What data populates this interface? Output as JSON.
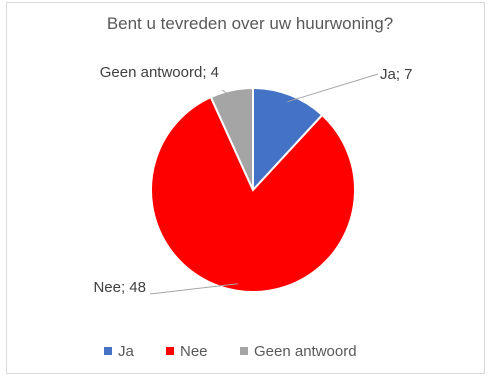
{
  "chart_data": {
    "type": "pie",
    "title": "Bent u tevreden over uw huurwoning?",
    "categories": [
      "Ja",
      "Nee",
      "Geen antwoord"
    ],
    "values": [
      7,
      48,
      4
    ],
    "data_labels": [
      "Ja; 7",
      "Nee; 48",
      "Geen antwoord; 4"
    ],
    "colors": [
      "#4472c4",
      "#ff0000",
      "#a5a5a5"
    ],
    "legend": {
      "placement": "bottom",
      "entries": [
        "Ja",
        "Nee",
        "Geen antwoord"
      ]
    },
    "start_angle_deg": 0,
    "direction": "clockwise"
  }
}
